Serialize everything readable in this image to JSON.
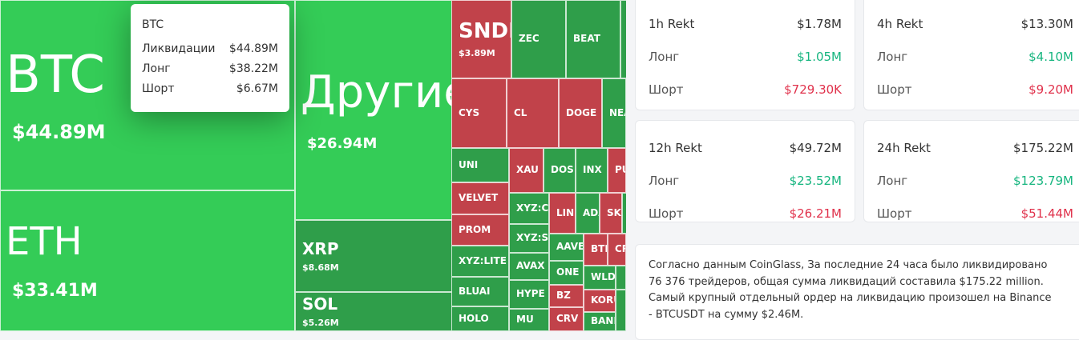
{
  "treemap": {
    "tiles": [
      {
        "label": "BTC",
        "value": "$44.89M"
      },
      {
        "label": "ETH",
        "value": "$33.41M"
      },
      {
        "label": "Другие",
        "value": "$26.94M"
      },
      {
        "label": "XRP",
        "value": "$8.68M"
      },
      {
        "label": "SOL",
        "value": "$5.26M"
      },
      {
        "label": "SNDK",
        "value": "$3.89M"
      },
      {
        "label": "ZEC"
      },
      {
        "label": "BEAT"
      },
      {
        "label": "CYS"
      },
      {
        "label": "CL"
      },
      {
        "label": "DOGE"
      },
      {
        "label": "NEA"
      },
      {
        "label": "UNI"
      },
      {
        "label": "VELVET"
      },
      {
        "label": "PROM"
      },
      {
        "label": "XYZ:LITE"
      },
      {
        "label": "BLUAI"
      },
      {
        "label": "HOLO"
      },
      {
        "label": "XAU"
      },
      {
        "label": "DOS"
      },
      {
        "label": "INX"
      },
      {
        "label": "PU"
      },
      {
        "label": "XYZ:CL"
      },
      {
        "label": "XYZ:SP"
      },
      {
        "label": "AVAX"
      },
      {
        "label": "HYPE"
      },
      {
        "label": "MU"
      },
      {
        "label": "LINI"
      },
      {
        "label": "ADA"
      },
      {
        "label": "SKH"
      },
      {
        "label": "AAVE"
      },
      {
        "label": "ONE"
      },
      {
        "label": "BTI"
      },
      {
        "label": "CR"
      },
      {
        "label": "WLD"
      },
      {
        "label": "BZ"
      },
      {
        "label": "CRV"
      },
      {
        "label": "KORU"
      },
      {
        "label": "BANK"
      }
    ]
  },
  "tooltip": {
    "title": "BTC",
    "rows": [
      {
        "label": "Ликвидации",
        "value": "$44.89M"
      },
      {
        "label": "Лонг",
        "value": "$38.22M"
      },
      {
        "label": "Шорт",
        "value": "$6.67M"
      }
    ]
  },
  "cards": [
    {
      "title": "1h Rekt",
      "total": "$1.78M",
      "long_label": "Лонг",
      "long": "$1.05M",
      "short_label": "Шорт",
      "short": "$729.30K"
    },
    {
      "title": "4h Rekt",
      "total": "$13.30M",
      "long_label": "Лонг",
      "long": "$4.10M",
      "short_label": "Шорт",
      "short": "$9.20M"
    },
    {
      "title": "12h Rekt",
      "total": "$49.72M",
      "long_label": "Лонг",
      "long": "$23.52M",
      "short_label": "Шорт",
      "short": "$26.21M"
    },
    {
      "title": "24h Rekt",
      "total": "$175.22M",
      "long_label": "Лонг",
      "long": "$123.79M",
      "short_label": "Шорт",
      "short": "$51.44M"
    }
  ],
  "summary": [
    "Согласно данным CoinGlass, За последние 24 часа было ликвидировано 76 376 трейдеров, общая сумма ликвидаций составила $175.22 million.",
    "Самый крупный отдельный ордер на ликвидацию произошел на Binance - BTCUSDT на сумму $2.46M."
  ]
}
